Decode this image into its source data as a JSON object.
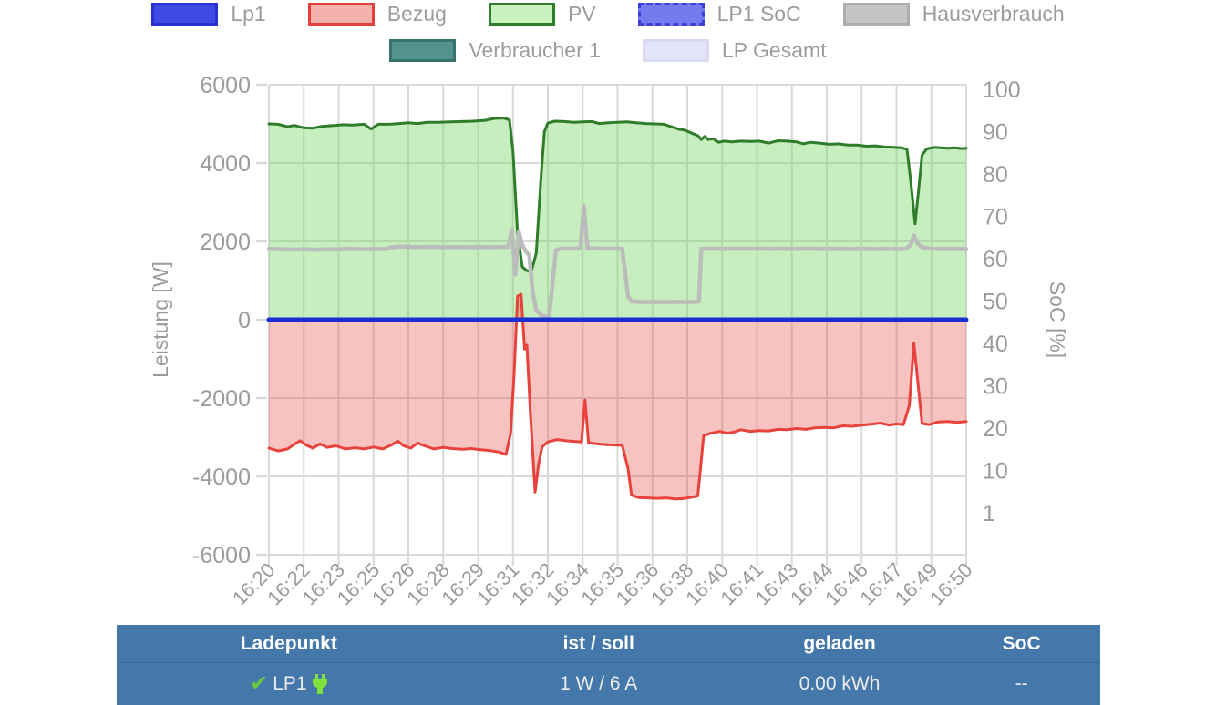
{
  "legend": {
    "rows": [
      [
        {
          "label": "Lp1",
          "fill": "#3f4ae3",
          "border": "#2a31d3",
          "dashed": false
        },
        {
          "label": "Bezug",
          "fill": "#f3b1ac",
          "border": "#e2403b",
          "dashed": false
        },
        {
          "label": "PV",
          "fill": "#c8f3be",
          "border": "#2f7d2a",
          "dashed": false
        },
        {
          "label": "LP1 SoC",
          "fill": "#757bee",
          "border": "#3c3fd8",
          "dashed": true
        },
        {
          "label": "Hausverbrauch",
          "fill": "#c4c4c4",
          "border": "#adadad",
          "dashed": false
        }
      ],
      [
        {
          "label": "Verbraucher 1",
          "fill": "#53938d",
          "border": "#39726c",
          "dashed": false
        },
        {
          "label": "LP Gesamt",
          "fill": "#e4e4f8",
          "border": "#d9d9f2",
          "dashed": false
        }
      ]
    ]
  },
  "chart_data": {
    "type": "area",
    "title": "",
    "x_axis": {
      "labels": [
        "16:20",
        "16:22",
        "16:23",
        "16:25",
        "16:26",
        "16:28",
        "16:29",
        "16:31",
        "16:32",
        "16:34",
        "16:35",
        "16:36",
        "16:38",
        "16:40",
        "16:41",
        "16:43",
        "16:44",
        "16:46",
        "16:47",
        "16:49",
        "16:50"
      ],
      "tick_rotation": -45,
      "x_unit": "minutes after 16:20",
      "x_max": 30
    },
    "y_left": {
      "label": "Leistung [W]",
      "ticks": [
        "6000",
        "4000",
        "2000",
        "0",
        "-2000",
        "-4000",
        "-6000"
      ],
      "min": -6000,
      "max": 6000
    },
    "y_right": {
      "label": "SoC [%]",
      "ticks": [
        "100",
        "90",
        "80",
        "70",
        "60",
        "50",
        "40",
        "30",
        "20",
        "10",
        "1"
      ]
    },
    "grid": true,
    "series": [
      {
        "name": "PV",
        "kind": "area",
        "stroke": "#2f7d2a",
        "fill": "rgba(119,214,101,0.42)",
        "width": 3,
        "x": [
          0,
          0.4,
          0.8,
          1.1,
          1.5,
          1.9,
          2.3,
          2.8,
          3.2,
          3.6,
          4.1,
          4.4,
          4.7,
          5.2,
          5.6,
          6,
          6.4,
          6.8,
          7.3,
          7.8,
          8.3,
          8.8,
          9.3,
          9.7,
          10.1,
          10.35,
          10.5,
          10.7,
          10.9,
          11.1,
          11.3,
          11.5,
          11.7,
          11.85,
          12,
          12.3,
          12.7,
          13.1,
          13.5,
          13.9,
          14.2,
          14.6,
          15,
          15.4,
          15.8,
          16.2,
          16.6,
          17,
          17.3,
          17.6,
          17.9,
          18.2,
          18.45,
          18.6,
          18.75,
          18.9,
          19.1,
          19.35,
          19.6,
          19.9,
          20.3,
          20.7,
          21.1,
          21.5,
          21.9,
          22.3,
          22.7,
          23,
          23.3,
          23.7,
          24.1,
          24.5,
          24.9,
          25.3,
          25.7,
          26.1,
          26.5,
          26.9,
          27.2,
          27.45,
          27.6,
          27.8,
          27.95,
          28.1,
          28.3,
          28.6,
          28.9,
          29.2,
          29.5,
          29.8,
          30
        ],
        "y": [
          5000,
          4990,
          4930,
          4960,
          4900,
          4890,
          4940,
          4960,
          4980,
          4970,
          4990,
          4870,
          4990,
          4990,
          5010,
          5030,
          5010,
          5040,
          5040,
          5050,
          5060,
          5070,
          5090,
          5140,
          5150,
          5100,
          4300,
          2200,
          1350,
          1250,
          1250,
          1700,
          3600,
          4800,
          5020,
          5070,
          5060,
          5040,
          5050,
          5060,
          5010,
          5030,
          5040,
          5050,
          5030,
          5010,
          5000,
          4990,
          4930,
          4870,
          4840,
          4760,
          4700,
          4600,
          4680,
          4600,
          4620,
          4530,
          4560,
          4540,
          4560,
          4550,
          4560,
          4510,
          4570,
          4560,
          4540,
          4490,
          4530,
          4510,
          4480,
          4490,
          4460,
          4460,
          4430,
          4440,
          4410,
          4400,
          4390,
          4350,
          3600,
          2450,
          3300,
          4200,
          4360,
          4400,
          4390,
          4380,
          4390,
          4370,
          4380
        ]
      },
      {
        "name": "Bezug",
        "kind": "area",
        "stroke": "#e8423c",
        "fill": "rgba(233,82,74,0.35)",
        "width": 3,
        "x": [
          0,
          0.4,
          0.8,
          1.1,
          1.35,
          1.6,
          1.9,
          2.2,
          2.5,
          2.9,
          3.3,
          3.7,
          4.1,
          4.5,
          4.9,
          5.3,
          5.55,
          5.8,
          6.1,
          6.4,
          6.7,
          7.1,
          7.5,
          7.9,
          8.3,
          8.7,
          9.1,
          9.5,
          9.9,
          10.2,
          10.4,
          10.55,
          10.7,
          10.85,
          11,
          11.1,
          11.25,
          11.45,
          11.6,
          11.75,
          12,
          12.4,
          12.8,
          13.2,
          13.45,
          13.6,
          13.75,
          14.1,
          14.5,
          14.9,
          15.2,
          15.45,
          15.6,
          15.9,
          16.3,
          16.7,
          17.1,
          17.5,
          17.9,
          18.2,
          18.45,
          18.6,
          18.7,
          19,
          19.4,
          19.7,
          20,
          20.3,
          20.7,
          21.1,
          21.5,
          21.9,
          22.3,
          22.7,
          23.1,
          23.5,
          23.9,
          24.3,
          24.7,
          25.1,
          25.5,
          25.9,
          26.3,
          26.7,
          27,
          27.3,
          27.55,
          27.75,
          27.9,
          28.1,
          28.4,
          28.8,
          29.2,
          29.6,
          30
        ],
        "y": [
          -3280,
          -3350,
          -3300,
          -3180,
          -3090,
          -3200,
          -3280,
          -3170,
          -3260,
          -3220,
          -3300,
          -3270,
          -3300,
          -3250,
          -3300,
          -3190,
          -3100,
          -3220,
          -3280,
          -3150,
          -3220,
          -3300,
          -3260,
          -3290,
          -3310,
          -3290,
          -3320,
          -3340,
          -3380,
          -3440,
          -2900,
          -1400,
          600,
          650,
          -750,
          -650,
          -2400,
          -4400,
          -3700,
          -3250,
          -3120,
          -3060,
          -3090,
          -3110,
          -3120,
          -2050,
          -3140,
          -3170,
          -3190,
          -3200,
          -3210,
          -3800,
          -4480,
          -4540,
          -4550,
          -4560,
          -4550,
          -4580,
          -4560,
          -4530,
          -4500,
          -3600,
          -2960,
          -2900,
          -2850,
          -2900,
          -2870,
          -2810,
          -2850,
          -2830,
          -2840,
          -2800,
          -2810,
          -2780,
          -2800,
          -2760,
          -2750,
          -2760,
          -2710,
          -2720,
          -2690,
          -2670,
          -2640,
          -2690,
          -2660,
          -2680,
          -2200,
          -600,
          -1500,
          -2650,
          -2680,
          -2610,
          -2600,
          -2620,
          -2600
        ]
      },
      {
        "name": "Hausverbrauch",
        "kind": "line",
        "stroke": "#bcbcbc",
        "width": 4.5,
        "x": [
          0,
          0.5,
          1,
          1.5,
          2,
          2.5,
          3,
          3.5,
          4,
          4.5,
          5,
          5.3,
          5.6,
          6,
          6.5,
          7,
          7.5,
          8,
          8.5,
          9,
          9.5,
          10,
          10.3,
          10.45,
          10.6,
          10.75,
          10.9,
          11.05,
          11.2,
          11.35,
          11.5,
          11.7,
          11.9,
          12.05,
          12.2,
          12.35,
          12.6,
          13,
          13.4,
          13.55,
          13.7,
          14.1,
          14.5,
          14.9,
          15.2,
          15.45,
          15.6,
          16,
          16.5,
          17,
          17.5,
          18,
          18.3,
          18.5,
          18.6,
          19,
          19.5,
          20,
          20.5,
          21,
          21.5,
          22,
          22.5,
          23,
          23.5,
          24,
          24.5,
          25,
          25.5,
          26,
          26.5,
          27,
          27.4,
          27.6,
          27.75,
          27.9,
          28.1,
          28.5,
          29,
          29.5,
          30
        ],
        "y": [
          1810,
          1800,
          1790,
          1800,
          1785,
          1800,
          1795,
          1810,
          1800,
          1805,
          1800,
          1850,
          1870,
          1860,
          1855,
          1860,
          1850,
          1855,
          1850,
          1855,
          1850,
          1855,
          1860,
          2300,
          1150,
          2250,
          1900,
          1750,
          1650,
          700,
          250,
          120,
          80,
          70,
          900,
          1780,
          1820,
          1815,
          1820,
          2900,
          1825,
          1820,
          1815,
          1820,
          1815,
          600,
          470,
          450,
          455,
          450,
          455,
          450,
          455,
          470,
          1810,
          1815,
          1810,
          1815,
          1810,
          1815,
          1810,
          1812,
          1810,
          1812,
          1810,
          1808,
          1810,
          1805,
          1808,
          1805,
          1808,
          1805,
          1810,
          1900,
          2150,
          1950,
          1850,
          1810,
          1808,
          1810,
          1805
        ]
      },
      {
        "name": "Lp1",
        "kind": "line",
        "stroke": "#1a2ed1",
        "width": 5,
        "x": [
          0,
          30
        ],
        "y": [
          0,
          0
        ]
      }
    ],
    "legend_entries_without_visible_series": [
      "LP1 SoC",
      "Verbraucher 1",
      "LP Gesamt"
    ]
  },
  "table": {
    "headers": [
      "Ladepunkt",
      "ist / soll",
      "geladen",
      "SoC"
    ],
    "row": {
      "name": "LP1",
      "ist_soll": "1 W / 6 A",
      "geladen": "0.00 kWh",
      "soc": "--"
    }
  },
  "colors": {
    "axis_text": "#9b9b9b",
    "grid": "#d9d9d9",
    "table_header_bg": "#4478ab",
    "check_green": "#67c83f",
    "plug_green": "#7ee33c"
  }
}
